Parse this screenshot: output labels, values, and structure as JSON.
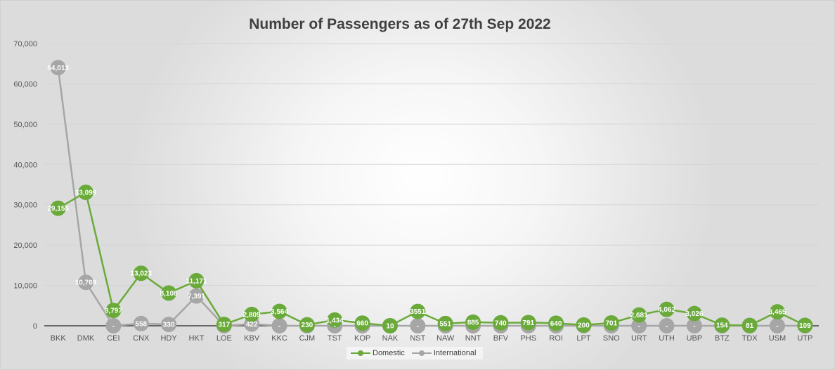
{
  "chart_data": {
    "type": "line",
    "title": "Number of Passengers as of 27th Sep 2022",
    "xlabel": "",
    "ylabel": "",
    "ylim": [
      0,
      70000
    ],
    "yticks": [
      "0",
      "10,000",
      "20,000",
      "30,000",
      "40,000",
      "50,000",
      "60,000",
      "70,000"
    ],
    "grid": true,
    "legend_position": "bottom",
    "categories": [
      "BKK",
      "DMK",
      "CEI",
      "CNX",
      "HDY",
      "HKT",
      "LOE",
      "KBV",
      "KKC",
      "CJM",
      "TST",
      "KOP",
      "NAK",
      "NST",
      "NAW",
      "NNT",
      "BFV",
      "PHS",
      "ROI",
      "LPT",
      "SNO",
      "URT",
      "UTH",
      "UBP",
      "BTZ",
      "TDX",
      "USM",
      "UTP"
    ],
    "series": [
      {
        "name": "Domestic",
        "color": "#6aaa3a",
        "values": [
          29155,
          33099,
          3797,
          13023,
          8108,
          11171,
          317,
          2809,
          3564,
          230,
          1434,
          660,
          10,
          3551,
          551,
          885,
          740,
          791,
          640,
          200,
          701,
          2681,
          4062,
          3026,
          154,
          81,
          3465,
          109
        ],
        "labels": [
          "29,155",
          "33,099",
          "3,797",
          "13,023",
          "8,108",
          "11,171",
          "317",
          "2,809",
          "3,564",
          "230",
          "1,434",
          "660",
          "10",
          "3551",
          "551",
          "885",
          "740",
          "791",
          "640",
          "200",
          "701",
          "2,681",
          "4,062",
          "3,026",
          "154",
          "81",
          "3,465",
          "109"
        ]
      },
      {
        "name": "International",
        "color": "#a6a6a6",
        "values": [
          64013,
          10769,
          0,
          558,
          330,
          7391,
          0,
          422,
          0,
          0,
          0,
          0,
          0,
          0,
          0,
          0,
          0,
          0,
          0,
          0,
          0,
          0,
          0,
          0,
          0,
          0,
          0,
          0
        ],
        "labels": [
          "64,013",
          "10,769",
          "-",
          "558",
          "330",
          "7,391",
          "",
          "422",
          "-",
          "",
          "-",
          "",
          "",
          "-",
          "",
          "",
          "",
          "",
          "",
          "",
          "",
          "-",
          "-",
          "-",
          "",
          "",
          "-",
          ""
        ]
      }
    ]
  }
}
